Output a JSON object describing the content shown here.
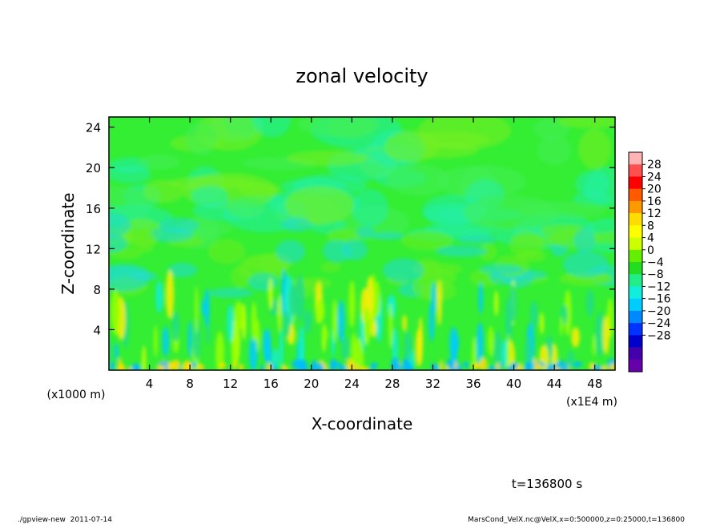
{
  "chart_data": {
    "type": "heatmap",
    "title": "zonal velocity",
    "xlabel": "X-coordinate",
    "ylabel": "Z-coordinate",
    "x_unit_label": "(x1E4 m)",
    "y_unit_label": "(x1000 m)",
    "xlim": [
      0,
      50
    ],
    "ylim": [
      0,
      25
    ],
    "x_ticks": [
      4,
      8,
      12,
      16,
      20,
      24,
      28,
      32,
      36,
      40,
      44,
      48
    ],
    "x_tick_labels": [
      "4",
      "8",
      "12",
      "16",
      "20",
      "24",
      "28",
      "32",
      "36",
      "40",
      "44",
      "48"
    ],
    "y_ticks": [
      4,
      8,
      12,
      16,
      20,
      24
    ],
    "y_tick_labels": [
      "4",
      "8",
      "12",
      "16",
      "20",
      "24"
    ],
    "colorbar": {
      "levels": [
        28,
        24,
        20,
        16,
        12,
        8,
        4,
        0,
        -4,
        -8,
        -12,
        -16,
        -20,
        -24,
        -28
      ],
      "labels": [
        "28",
        "24",
        "20",
        "16",
        "12",
        "8",
        "4",
        "0",
        "−4",
        "−8",
        "−12",
        "−16",
        "−20",
        "−24",
        "−28"
      ],
      "colors": [
        "#ffb3b3",
        "#ff5050",
        "#ff0000",
        "#ff5a00",
        "#ff9900",
        "#ffdd00",
        "#ffff00",
        "#ccff00",
        "#66ee00",
        "#22dd22",
        "#22ee88",
        "#11eedd",
        "#00ccff",
        "#0088ff",
        "#0033ff",
        "#0000cc",
        "#4400aa",
        "#6600aa"
      ]
    },
    "time_label": "t=136800 s"
  },
  "footer": {
    "left": "./gpview-new  2011-07-14",
    "right": "MarsCond_VelX.nc@VelX,x=0:500000,z=0:25000,t=136800"
  }
}
